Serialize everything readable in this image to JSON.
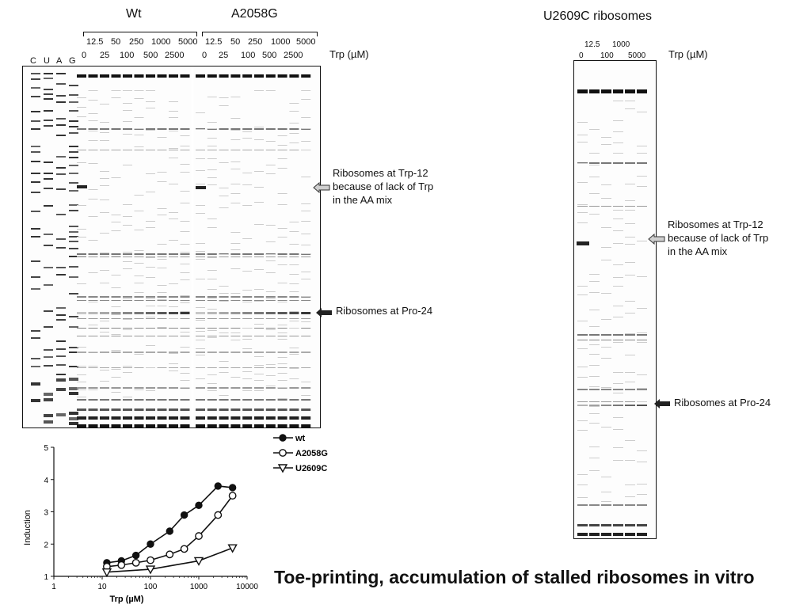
{
  "title": "Toe-printing, accumulation of stalled ribosomes in vitro",
  "left_panel": {
    "group_wt": "Wt",
    "group_mut": "A2058G",
    "conc_top": [
      "12.5",
      "50",
      "250",
      "1000",
      "5000"
    ],
    "conc_bottom": [
      "0",
      "25",
      "100",
      "500",
      "2500"
    ],
    "unit_label": "Trp (µM)",
    "seq_lanes": [
      "C",
      "U",
      "A",
      "G"
    ],
    "arrow1_text": [
      "Ribosomes at Trp-12",
      "because of lack of Trp",
      "in the AA mix"
    ],
    "arrow2_text": "Ribosomes at Pro-24"
  },
  "right_panel": {
    "title": "U2609C ribosomes",
    "conc_top": [
      "12.5",
      "1000"
    ],
    "conc_bottom": [
      "0",
      "100",
      "5000"
    ],
    "unit_label": "Trp (µM)",
    "arrow1_text": [
      "Ribosomes at Trp-12",
      "because of lack of Trp",
      "in the AA mix"
    ],
    "arrow2_text": "Ribosomes at Pro-24"
  },
  "chart_data": {
    "type": "line",
    "xlabel": "Trp (µM)",
    "ylabel": "Induction",
    "xscale": "log",
    "xlim": [
      1,
      10000
    ],
    "ylim": [
      1,
      5
    ],
    "x_ticks": [
      "1",
      "10",
      "100",
      "1000",
      "10000"
    ],
    "y_ticks": [
      "1",
      "2",
      "3",
      "4",
      "5"
    ],
    "legend_position": "top-right, outside plot",
    "series": [
      {
        "name": "wt",
        "marker": "filled-circle",
        "x": [
          12.5,
          25,
          50,
          100,
          250,
          500,
          1000,
          2500,
          5000
        ],
        "y": [
          1.42,
          1.48,
          1.65,
          2.0,
          2.4,
          2.9,
          3.2,
          3.8,
          3.75
        ]
      },
      {
        "name": "A2058G",
        "marker": "open-circle",
        "x": [
          12.5,
          25,
          50,
          100,
          250,
          500,
          1000,
          2500,
          5000
        ],
        "y": [
          1.3,
          1.35,
          1.42,
          1.5,
          1.68,
          1.85,
          2.25,
          2.9,
          3.5
        ]
      },
      {
        "name": "U2609C",
        "marker": "open-triangle-down",
        "x": [
          12.5,
          100,
          1000,
          5000
        ],
        "y": [
          1.13,
          1.22,
          1.48,
          1.88
        ]
      }
    ]
  }
}
